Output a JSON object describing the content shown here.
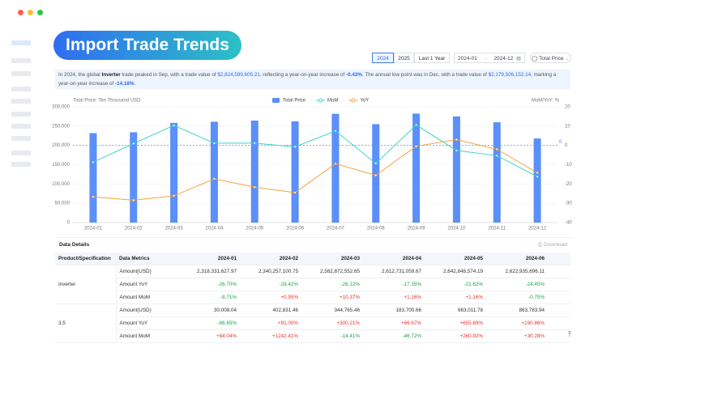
{
  "header": {
    "title": "Import Trade Trends"
  },
  "controls": {
    "years": [
      "2024",
      "2025",
      "Last 1 Year"
    ],
    "start": "2024-01",
    "end": "2024-12",
    "metric": "Total Price"
  },
  "summary": [
    "In 2024, the global ",
    "Inverter",
    " trade peaked in Sep, with a trade value of ",
    "$2,824,599,605.21",
    ", reflecting a year-on-year increase of ",
    "-0.43%",
    ". The annual low point was in Dec, with a trade value of ",
    "$2,179,506,152.14",
    ", marking a year-on-year increase of ",
    "-14.18%",
    "."
  ],
  "chart_data": {
    "type": "combo",
    "y_label": "Total Price: Ten Thousand USD",
    "y2_label": "MoM/YoY: %",
    "categories": [
      "2024-01",
      "2024-02",
      "2024-03",
      "2024-04",
      "2024-05",
      "2024-06",
      "2024-07",
      "2024-08",
      "2024-09",
      "2024-10",
      "2024-11",
      "2024-12"
    ],
    "series": [
      {
        "name": "Total Price",
        "type": "bar",
        "color": "#5b8ff9",
        "values": [
          231833,
          234026,
          258287,
          261273,
          264285,
          262294,
          282000,
          255000,
          282460,
          275000,
          260000,
          217951
        ]
      },
      {
        "name": "MoM",
        "type": "line",
        "axis": "y2",
        "color": "#3fd2c7",
        "values": [
          -8.71,
          0.95,
          10.37,
          1.16,
          1.16,
          -0.75,
          7.5,
          -9.3,
          10.6,
          -2.6,
          -5.3,
          -16.2
        ]
      },
      {
        "name": "YoY",
        "type": "line",
        "axis": "y2",
        "color": "#f6a23a",
        "values": [
          -26.7,
          -28.42,
          -26.12,
          -17.35,
          -21.62,
          -24.45,
          -9.5,
          -15.5,
          -0.43,
          3,
          -2,
          -14.18
        ]
      }
    ],
    "ylim": [
      0,
      300000
    ],
    "yticks": [
      0,
      {
        "value": 50000,
        "label": "50,000"
      },
      {
        "value": 100000,
        "label": "100,000"
      },
      {
        "value": 150000,
        "label": "150,000"
      },
      {
        "value": 200000,
        "label": "200,000"
      },
      {
        "value": 250000,
        "label": "250,000"
      },
      {
        "value": 300000,
        "label": "300,000"
      }
    ],
    "y2lim": [
      -40,
      20
    ],
    "y2ticks": [
      -40,
      -30,
      -20,
      -10,
      0,
      10,
      20
    ],
    "y2_reference": 0,
    "grid": true
  },
  "table": {
    "title": "Data Details",
    "download": "Download",
    "columns": [
      "Product/Specification",
      "Data Metrics",
      "2024-01",
      "2024-02",
      "2024-03",
      "2024-04",
      "2024-05",
      "2024-06"
    ],
    "groups": [
      {
        "name": "Inverter",
        "rows": [
          {
            "metric": "Amount(USD)",
            "values": [
              "2,318,331,627.97",
              "2,340,257,100.75",
              "2,582,872,552.65",
              "2,612,731,059.67",
              "2,642,848,574.19",
              "2,622,935,696.11"
            ]
          },
          {
            "metric": "Amount YoY",
            "values": [
              "-26.70%",
              "-28.42%",
              "-26.12%",
              "-17.35%",
              "-21.62%",
              "-24.45%"
            ]
          },
          {
            "metric": "Amount MoM",
            "values": [
              "-8.71%",
              "+0.95%",
              "+10.37%",
              "+1.16%",
              "+1.16%",
              "-0.75%"
            ]
          }
        ]
      },
      {
        "name": "3.5",
        "rows": [
          {
            "metric": "Amount(USD)",
            "values": [
              "30,008.04",
              "402,831.46",
              "344,765.46",
              "183,700.66",
              "663,011.78",
              "863,783.94"
            ]
          },
          {
            "metric": "Amount YoY",
            "values": [
              "-86.65%",
              "+91.00%",
              "+300.21%",
              "+66.67%",
              "+655.89%",
              "+190.86%"
            ]
          },
          {
            "metric": "Amount MoM",
            "values": [
              "+84.04%",
              "+1242.41%",
              "-14.41%",
              "-46.72%",
              "+260.92%",
              "+30.28%"
            ]
          }
        ]
      }
    ]
  }
}
